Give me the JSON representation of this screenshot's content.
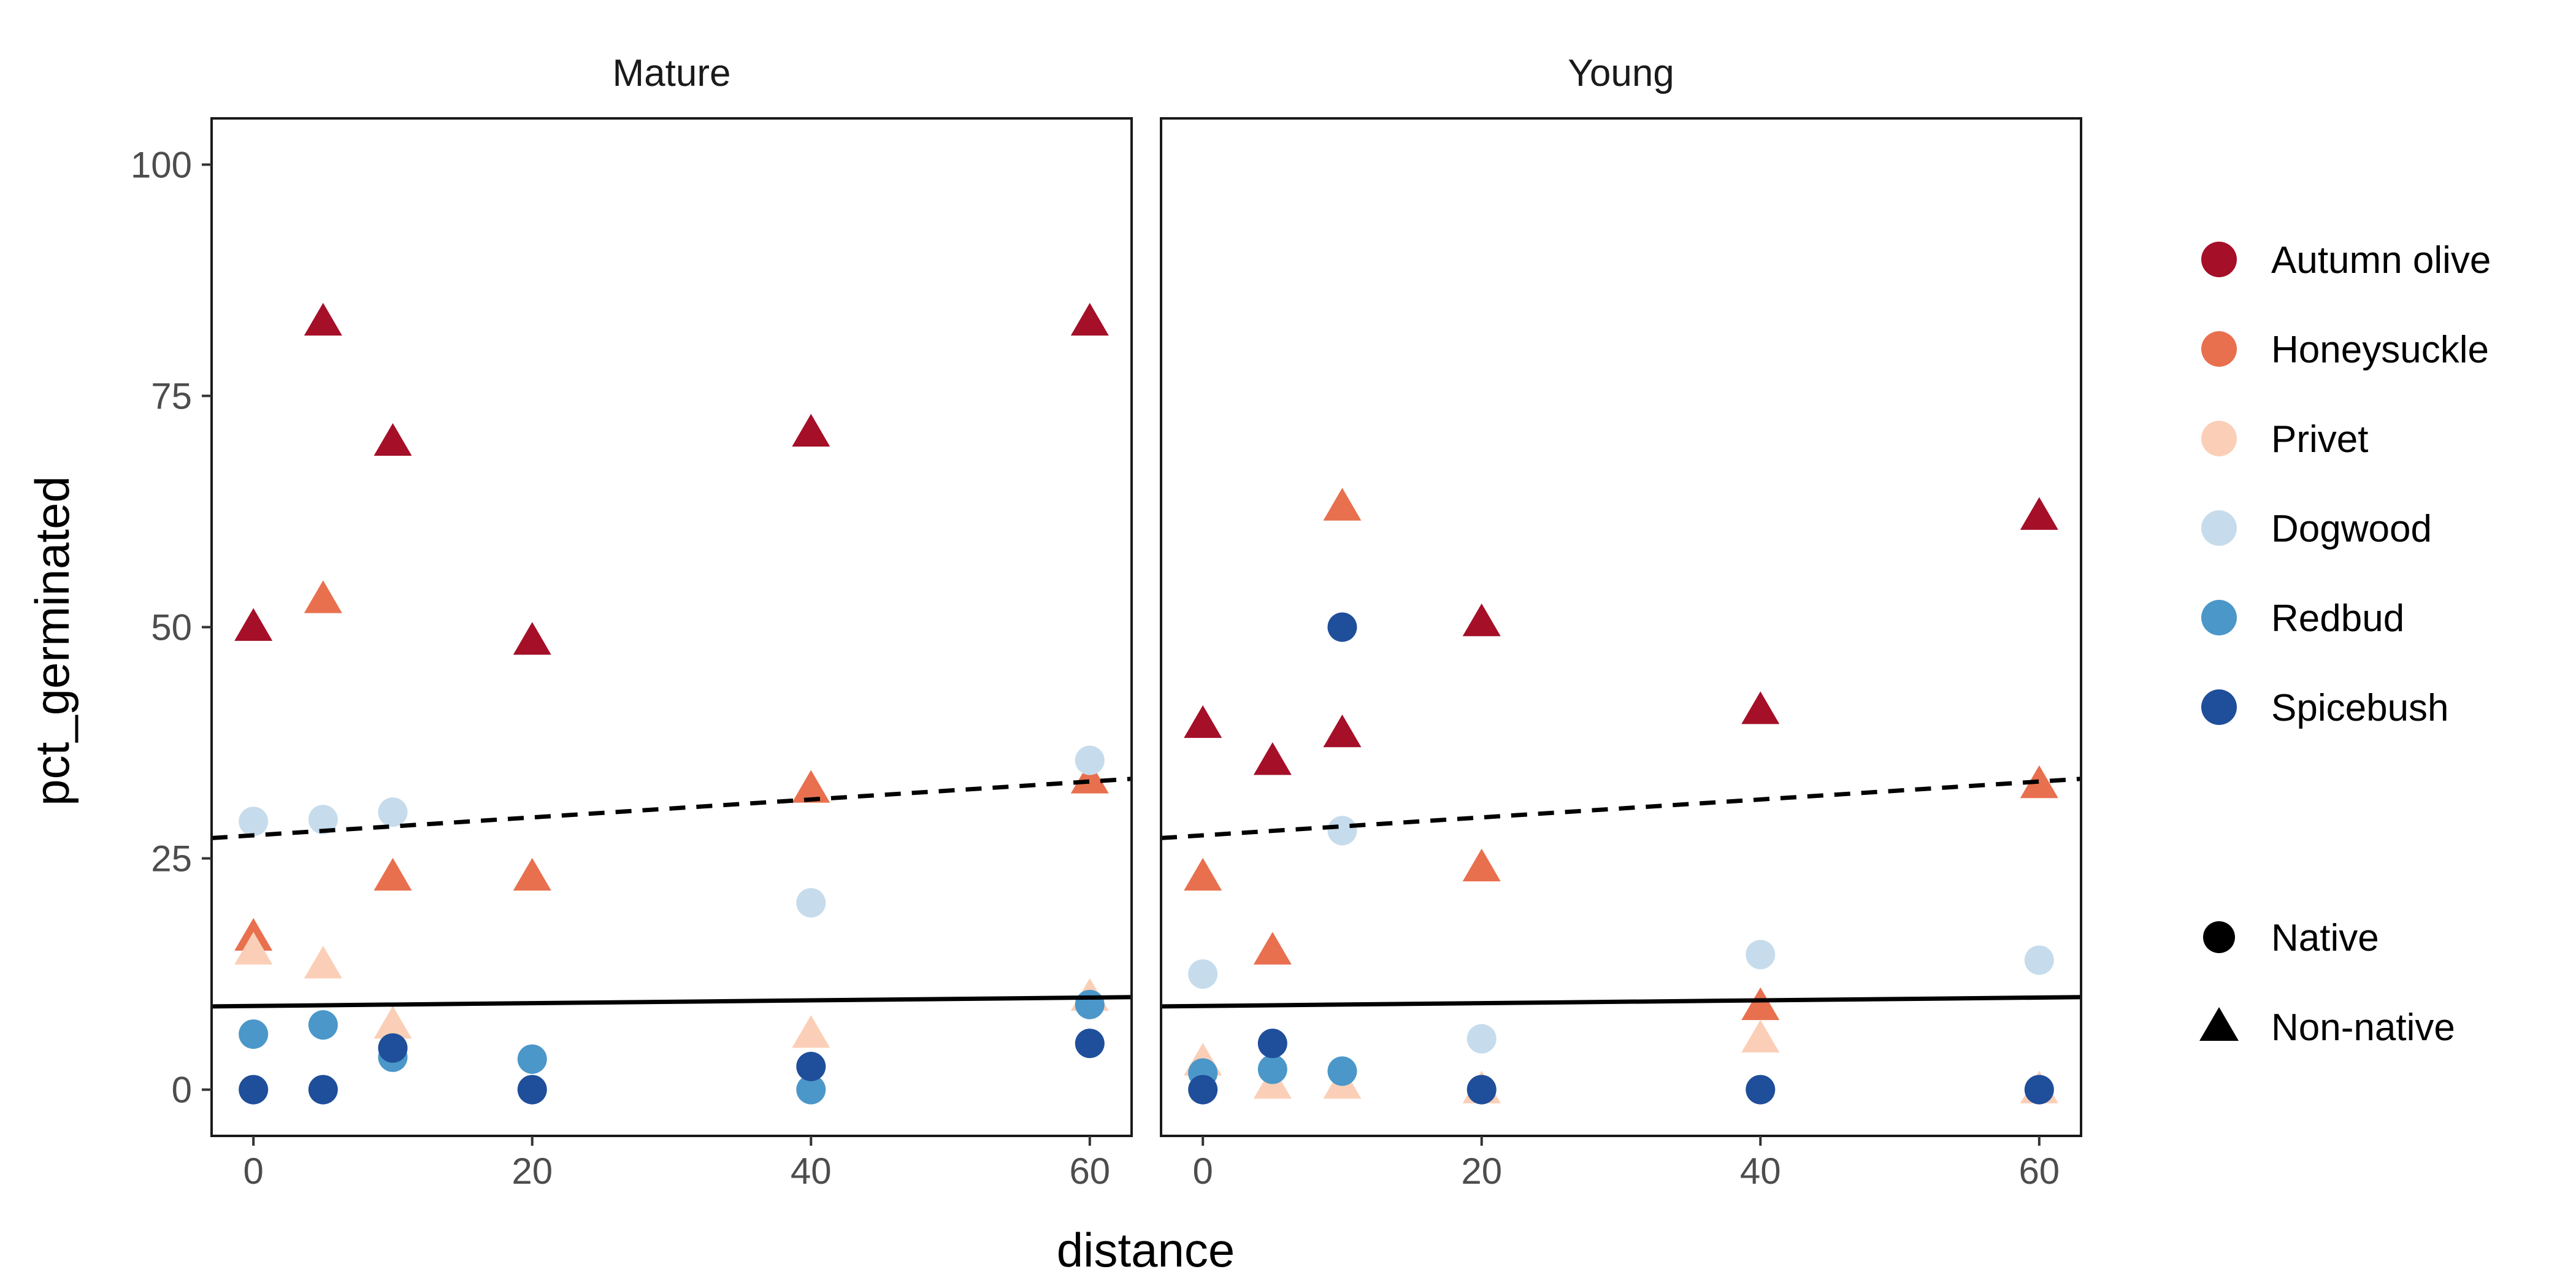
{
  "chart_data": {
    "type": "scatter",
    "xlabel": "distance",
    "ylabel": "pct_germinated",
    "xlim": [
      -3,
      63
    ],
    "ylim": [
      -5,
      105
    ],
    "x_ticks": [
      0,
      20,
      40,
      60
    ],
    "y_ticks": [
      0,
      25,
      50,
      75,
      100
    ],
    "facets": [
      {
        "name": "Mature",
        "points": [
          {
            "species": "Autumn olive",
            "origin": "Non-native",
            "x": 0,
            "y": 50
          },
          {
            "species": "Autumn olive",
            "origin": "Non-native",
            "x": 5,
            "y": 83
          },
          {
            "species": "Autumn olive",
            "origin": "Non-native",
            "x": 10,
            "y": 70
          },
          {
            "species": "Autumn olive",
            "origin": "Non-native",
            "x": 20,
            "y": 48.5
          },
          {
            "species": "Autumn olive",
            "origin": "Non-native",
            "x": 40,
            "y": 71
          },
          {
            "species": "Autumn olive",
            "origin": "Non-native",
            "x": 60,
            "y": 83
          },
          {
            "species": "Honeysuckle",
            "origin": "Non-native",
            "x": 0,
            "y": 16.5
          },
          {
            "species": "Honeysuckle",
            "origin": "Non-native",
            "x": 5,
            "y": 53
          },
          {
            "species": "Honeysuckle",
            "origin": "Non-native",
            "x": 10,
            "y": 23
          },
          {
            "species": "Honeysuckle",
            "origin": "Non-native",
            "x": 20,
            "y": 23
          },
          {
            "species": "Honeysuckle",
            "origin": "Non-native",
            "x": 40,
            "y": 32.5
          },
          {
            "species": "Honeysuckle",
            "origin": "Non-native",
            "x": 60,
            "y": 33.5
          },
          {
            "species": "Privet",
            "origin": "Non-native",
            "x": 0,
            "y": 15
          },
          {
            "species": "Privet",
            "origin": "Non-native",
            "x": 5,
            "y": 13.5
          },
          {
            "species": "Privet",
            "origin": "Non-native",
            "x": 10,
            "y": 7
          },
          {
            "species": "Privet",
            "origin": "Non-native",
            "x": 40,
            "y": 6
          },
          {
            "species": "Privet",
            "origin": "Non-native",
            "x": 60,
            "y": 10
          },
          {
            "species": "Dogwood",
            "origin": "Native",
            "x": 0,
            "y": 29
          },
          {
            "species": "Dogwood",
            "origin": "Native",
            "x": 5,
            "y": 29.2
          },
          {
            "species": "Dogwood",
            "origin": "Native",
            "x": 10,
            "y": 30
          },
          {
            "species": "Dogwood",
            "origin": "Native",
            "x": 40,
            "y": 20.2
          },
          {
            "species": "Dogwood",
            "origin": "Native",
            "x": 60,
            "y": 35.6
          },
          {
            "species": "Redbud",
            "origin": "Native",
            "x": 0,
            "y": 6
          },
          {
            "species": "Redbud",
            "origin": "Native",
            "x": 5,
            "y": 7
          },
          {
            "species": "Redbud",
            "origin": "Native",
            "x": 10,
            "y": 3.5
          },
          {
            "species": "Redbud",
            "origin": "Native",
            "x": 20,
            "y": 3.3
          },
          {
            "species": "Redbud",
            "origin": "Native",
            "x": 40,
            "y": 0
          },
          {
            "species": "Redbud",
            "origin": "Native",
            "x": 60,
            "y": 9.2
          },
          {
            "species": "Spicebush",
            "origin": "Native",
            "x": 0,
            "y": 0
          },
          {
            "species": "Spicebush",
            "origin": "Native",
            "x": 5,
            "y": 0
          },
          {
            "species": "Spicebush",
            "origin": "Native",
            "x": 10,
            "y": 4.5
          },
          {
            "species": "Spicebush",
            "origin": "Native",
            "x": 20,
            "y": 0
          },
          {
            "species": "Spicebush",
            "origin": "Native",
            "x": 40,
            "y": 2.5
          },
          {
            "species": "Spicebush",
            "origin": "Native",
            "x": 60,
            "y": 5
          }
        ]
      },
      {
        "name": "Young",
        "points": [
          {
            "species": "Autumn olive",
            "origin": "Non-native",
            "x": 0,
            "y": 39.5
          },
          {
            "species": "Autumn olive",
            "origin": "Non-native",
            "x": 5,
            "y": 35.5
          },
          {
            "species": "Autumn olive",
            "origin": "Non-native",
            "x": 10,
            "y": 38.5
          },
          {
            "species": "Autumn olive",
            "origin": "Non-native",
            "x": 20,
            "y": 50.5
          },
          {
            "species": "Autumn olive",
            "origin": "Non-native",
            "x": 40,
            "y": 41
          },
          {
            "species": "Autumn olive",
            "origin": "Non-native",
            "x": 60,
            "y": 62
          },
          {
            "species": "Honeysuckle",
            "origin": "Non-native",
            "x": 0,
            "y": 23
          },
          {
            "species": "Honeysuckle",
            "origin": "Non-native",
            "x": 5,
            "y": 15
          },
          {
            "species": "Honeysuckle",
            "origin": "Non-native",
            "x": 10,
            "y": 63
          },
          {
            "species": "Honeysuckle",
            "origin": "Non-native",
            "x": 20,
            "y": 24
          },
          {
            "species": "Honeysuckle",
            "origin": "Non-native",
            "x": 40,
            "y": 9
          },
          {
            "species": "Honeysuckle",
            "origin": "Non-native",
            "x": 60,
            "y": 33
          },
          {
            "species": "Privet",
            "origin": "Non-native",
            "x": 0,
            "y": 3
          },
          {
            "species": "Privet",
            "origin": "Non-native",
            "x": 5,
            "y": 0.5
          },
          {
            "species": "Privet",
            "origin": "Non-native",
            "x": 10,
            "y": 0.5
          },
          {
            "species": "Privet",
            "origin": "Non-native",
            "x": 20,
            "y": 0
          },
          {
            "species": "Privet",
            "origin": "Non-native",
            "x": 40,
            "y": 5.5
          },
          {
            "species": "Privet",
            "origin": "Non-native",
            "x": 60,
            "y": 0
          },
          {
            "species": "Dogwood",
            "origin": "Native",
            "x": 0,
            "y": 12.5
          },
          {
            "species": "Dogwood",
            "origin": "Native",
            "x": 10,
            "y": 28
          },
          {
            "species": "Dogwood",
            "origin": "Native",
            "x": 20,
            "y": 5.5
          },
          {
            "species": "Dogwood",
            "origin": "Native",
            "x": 40,
            "y": 14.6
          },
          {
            "species": "Dogwood",
            "origin": "Native",
            "x": 60,
            "y": 14
          },
          {
            "species": "Redbud",
            "origin": "Native",
            "x": 0,
            "y": 1.8
          },
          {
            "species": "Redbud",
            "origin": "Native",
            "x": 5,
            "y": 2.2
          },
          {
            "species": "Redbud",
            "origin": "Native",
            "x": 10,
            "y": 2
          },
          {
            "species": "Spicebush",
            "origin": "Native",
            "x": 0,
            "y": 0
          },
          {
            "species": "Spicebush",
            "origin": "Native",
            "x": 5,
            "y": 5
          },
          {
            "species": "Spicebush",
            "origin": "Native",
            "x": 10,
            "y": 50
          },
          {
            "species": "Spicebush",
            "origin": "Native",
            "x": 20,
            "y": 0
          },
          {
            "species": "Spicebush",
            "origin": "Native",
            "x": 40,
            "y": 0
          },
          {
            "species": "Spicebush",
            "origin": "Native",
            "x": 60,
            "y": 0
          }
        ]
      }
    ],
    "trend_lines": [
      {
        "origin": "Non-native",
        "linetype": "dashed",
        "x": [
          -3,
          63
        ],
        "y": [
          27.2,
          33.6
        ]
      },
      {
        "origin": "Native",
        "linetype": "solid",
        "x": [
          -3,
          63
        ],
        "y": [
          9.0,
          10.0
        ]
      }
    ],
    "legend": {
      "placement": "right",
      "species": [
        {
          "label": "Autumn olive",
          "color": "#a50f28"
        },
        {
          "label": "Honeysuckle",
          "color": "#e8704e"
        },
        {
          "label": "Privet",
          "color": "#fbcfb7"
        },
        {
          "label": "Dogwood",
          "color": "#c6dcec"
        },
        {
          "label": "Redbud",
          "color": "#4b97c9"
        },
        {
          "label": "Spicebush",
          "color": "#1f4e9a"
        }
      ],
      "origin": [
        {
          "label": "Native",
          "shape": "circle"
        },
        {
          "label": "Non-native",
          "shape": "triangle"
        }
      ]
    },
    "grid": false
  }
}
